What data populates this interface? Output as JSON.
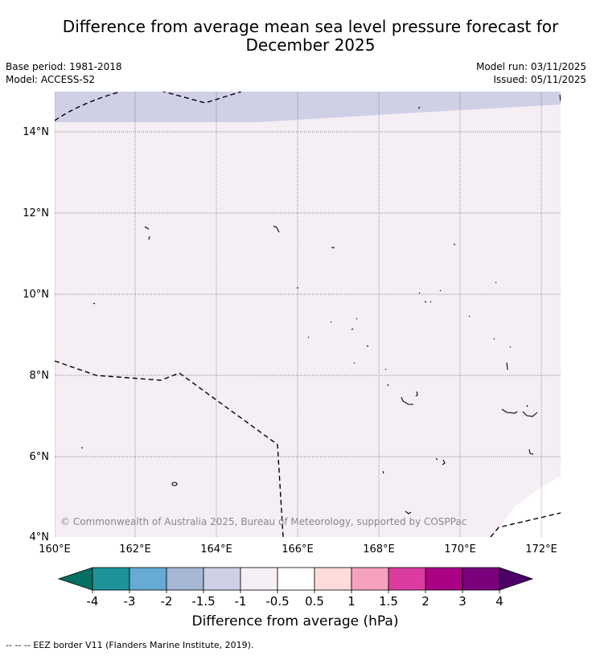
{
  "title_line1": "Difference from average mean sea level pressure forecast for",
  "title_line2": "December 2025",
  "base_period": "Base period: 1981-2018",
  "model": "Model: ACCESS-S2",
  "model_run": "Model run: 03/11/2025",
  "issued": "Issued: 05/11/2025",
  "copyright": "© Commonwealth of Australia 2025, Bureau of Meteorology, supported by COSPPac",
  "lat_labels": [
    "14°N",
    "12°N",
    "10°N",
    "8°N",
    "6°N",
    "4°N"
  ],
  "lon_labels": [
    "160°E",
    "162°E",
    "164°E",
    "166°E",
    "168°E",
    "170°E",
    "172°E"
  ],
  "colorbar": {
    "title": "Difference from average (hPa)",
    "ticks": [
      "-4",
      "-3",
      "-2",
      "-1.5",
      "-1",
      "-0.5",
      "0.5",
      "1",
      "1.5",
      "2",
      "3",
      "4"
    ],
    "colors": [
      "#1c9399",
      "#66abd3",
      "#a6b7d6",
      "#cfcfe6",
      "#f5eef5",
      "#ffffff",
      "#fedcdc",
      "#f7a2bd",
      "#dc3c9f",
      "#ab0185",
      "#7a017b"
    ],
    "min_color": "#046f62",
    "max_color": "#4c0067"
  },
  "footer": "--  --  -- EEZ border V11 (Flanders Marine Institute, 2019)."
}
